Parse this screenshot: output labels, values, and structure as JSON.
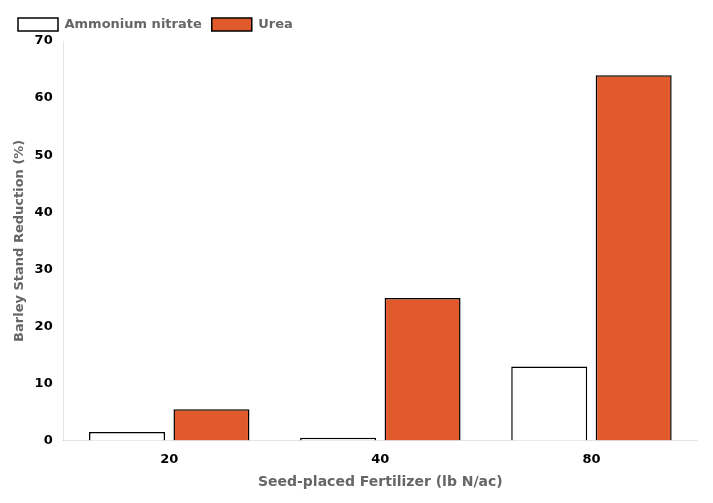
{
  "chart_data": {
    "type": "bar",
    "xlabel": "Seed-placed Fertilizer (lb N/ac)",
    "ylabel": "Barley Stand Reduction (%)",
    "categories": [
      "20",
      "40",
      "80"
    ],
    "series": [
      {
        "name": "Ammonium nitrate",
        "color": "#ffffff",
        "values": [
          1.5,
          0.5,
          13.0
        ]
      },
      {
        "name": "Urea",
        "color": "#e05a2b",
        "values": [
          5.5,
          25.0,
          64.0
        ]
      }
    ],
    "ylim": [
      0,
      70
    ],
    "yticks": [
      0,
      10,
      20,
      30,
      40,
      50,
      60,
      70
    ],
    "grid": false,
    "legend": "upper left"
  }
}
